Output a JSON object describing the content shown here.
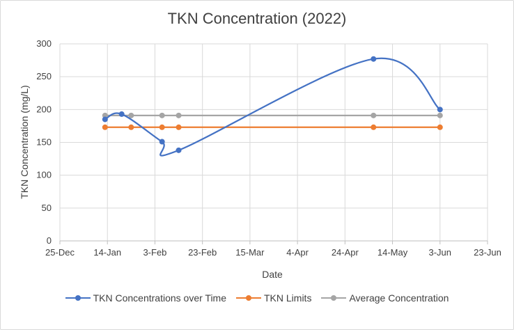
{
  "chart_data": {
    "type": "line",
    "title": "TKN Concentration (2022)",
    "xlabel": "Date",
    "ylabel": "TKN Concentration (mg/L)",
    "x_ticks": [
      "25-Dec",
      "14-Jan",
      "3-Feb",
      "23-Feb",
      "15-Mar",
      "4-Apr",
      "24-Apr",
      "14-May",
      "3-Jun",
      "23-Jun"
    ],
    "xlim": [
      "2021-12-25",
      "2022-06-23"
    ],
    "ylim": [
      0,
      300
    ],
    "y_ticks": [
      0,
      50,
      100,
      150,
      200,
      250,
      300
    ],
    "grid": true,
    "legend_position": "bottom",
    "series": [
      {
        "name": "TKN Concentrations over Time",
        "color": "#4472c4",
        "smooth": true,
        "points": [
          {
            "x": "2022-01-13",
            "y": 185
          },
          {
            "x": "2022-01-20",
            "y": 193
          },
          {
            "x": "2022-02-06",
            "y": 151
          },
          {
            "x": "2022-02-13",
            "y": 138
          },
          {
            "x": "2022-05-06",
            "y": 277
          },
          {
            "x": "2022-06-03",
            "y": 200
          }
        ]
      },
      {
        "name": "TKN Limits",
        "color": "#ed7d31",
        "smooth": false,
        "points": [
          {
            "x": "2022-01-13",
            "y": 173
          },
          {
            "x": "2022-01-24",
            "y": 173
          },
          {
            "x": "2022-02-06",
            "y": 173
          },
          {
            "x": "2022-02-13",
            "y": 173
          },
          {
            "x": "2022-05-06",
            "y": 173
          },
          {
            "x": "2022-06-03",
            "y": 173
          }
        ]
      },
      {
        "name": "Average Concentration",
        "color": "#a5a5a5",
        "smooth": false,
        "points": [
          {
            "x": "2022-01-13",
            "y": 191
          },
          {
            "x": "2022-01-24",
            "y": 191
          },
          {
            "x": "2022-02-06",
            "y": 191
          },
          {
            "x": "2022-02-13",
            "y": 191
          },
          {
            "x": "2022-05-06",
            "y": 191
          },
          {
            "x": "2022-06-03",
            "y": 191
          }
        ]
      }
    ]
  }
}
